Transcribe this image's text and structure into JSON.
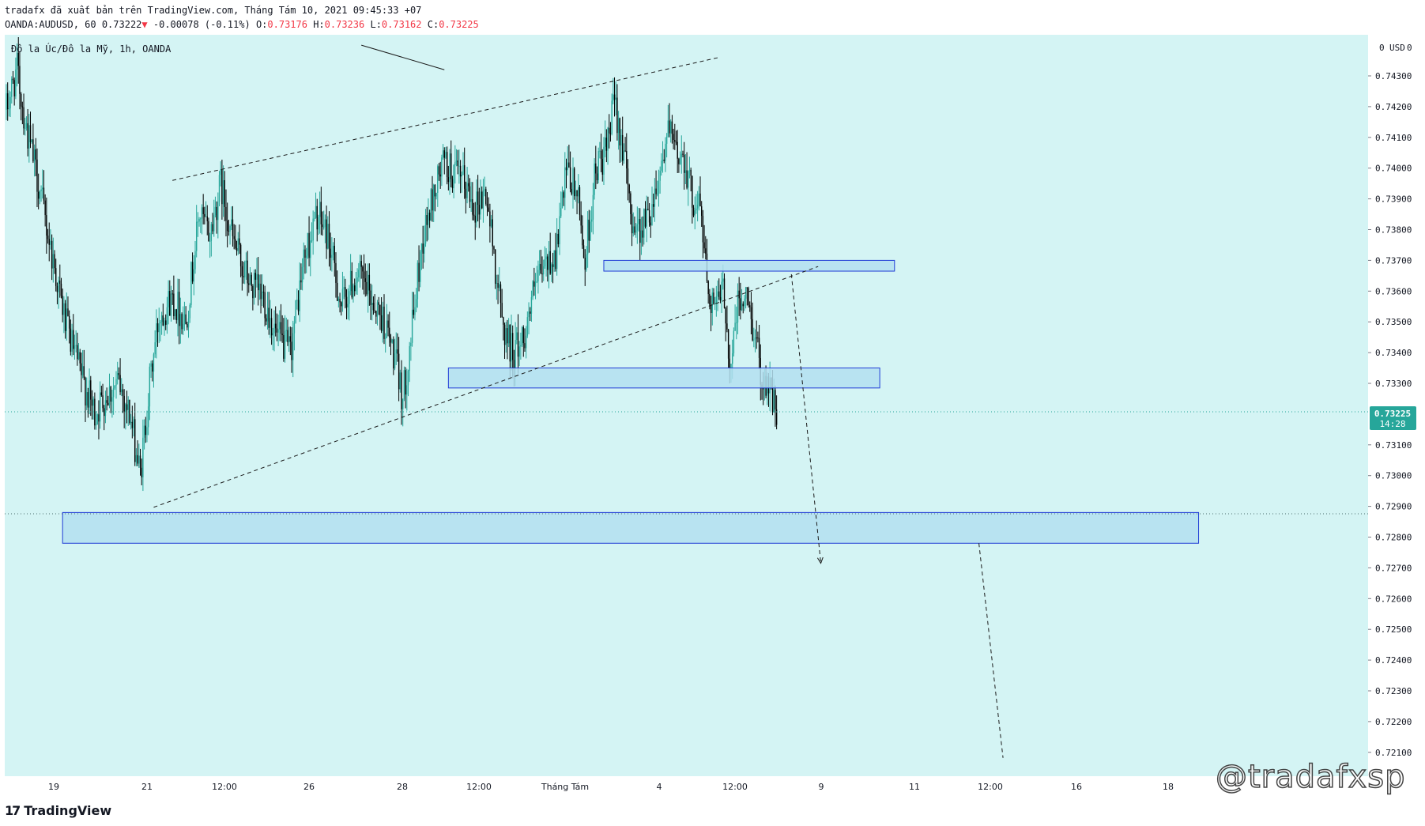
{
  "header": {
    "line1": "tradafx đã xuất bản trên TradingView.com, Tháng Tám 10, 2021 09:45:33 +07",
    "symbol": "OANDA:AUDUSD, 60",
    "last": "0.73222",
    "change": "-0.00078 (-0.11%)",
    "o_label": "O:",
    "o_value": "0.73176",
    "h_label": "H:",
    "h_value": "0.73236",
    "l_label": "L:",
    "l_value": "0.73162",
    "c_label": "C:",
    "c_value": "0.73225"
  },
  "legend_title": "Đô la Úc/Đô la Mỹ, 1h, OANDA",
  "currency_label": "USD",
  "price_badge": {
    "price": "0.73225",
    "countdown": "14:28",
    "color": "#26a69a"
  },
  "footer_logo": "TradingView",
  "watermark": "@tradafxsp",
  "colors": {
    "background": "#d4f4f4",
    "bull": "#26a69a",
    "bear": "#000000",
    "zone_fill": "#b3dff0",
    "zone_stroke": "#1f3bd6"
  },
  "chart_data": {
    "type": "candlestick",
    "symbol": "OANDA:AUDUSD",
    "timeframe": "1h",
    "y_axis": {
      "ticks": [
        "0.74300",
        "0.74200",
        "0.74100",
        "0.74000",
        "0.73900",
        "0.73800",
        "0.73700",
        "0.73600",
        "0.73500",
        "0.73400",
        "0.73300",
        "0.73100",
        "0.73000",
        "0.72900",
        "0.72800",
        "0.72700",
        "0.72600",
        "0.72500",
        "0.72400",
        "0.72300",
        "0.72200",
        "0.72100"
      ],
      "range": [
        0.7207,
        0.7443
      ]
    },
    "x_axis": {
      "ticks": [
        "19",
        "21",
        "12:00",
        "26",
        "28",
        "12:00",
        "Tháng Tám",
        "4",
        "12:00",
        "9",
        "11",
        "12:00",
        "16",
        "18"
      ]
    },
    "current_price": 0.73225,
    "anchors": [
      [
        0,
        0.7419
      ],
      [
        8,
        0.7432
      ],
      [
        14,
        0.7415
      ],
      [
        24,
        0.7395
      ],
      [
        34,
        0.7372
      ],
      [
        44,
        0.735
      ],
      [
        54,
        0.7335
      ],
      [
        66,
        0.732
      ],
      [
        74,
        0.7326
      ],
      [
        84,
        0.733
      ],
      [
        92,
        0.732
      ],
      [
        100,
        0.73
      ],
      [
        107,
        0.733
      ],
      [
        114,
        0.7352
      ],
      [
        124,
        0.7358
      ],
      [
        134,
        0.735
      ],
      [
        144,
        0.7385
      ],
      [
        152,
        0.7378
      ],
      [
        160,
        0.7395
      ],
      [
        170,
        0.7375
      ],
      [
        182,
        0.7362
      ],
      [
        192,
        0.7358
      ],
      [
        202,
        0.7345
      ],
      [
        212,
        0.734
      ],
      [
        222,
        0.737
      ],
      [
        232,
        0.7385
      ],
      [
        240,
        0.7378
      ],
      [
        250,
        0.7355
      ],
      [
        262,
        0.7366
      ],
      [
        272,
        0.7358
      ],
      [
        282,
        0.735
      ],
      [
        290,
        0.7338
      ],
      [
        296,
        0.7325
      ],
      [
        302,
        0.7345
      ],
      [
        310,
        0.7375
      ],
      [
        318,
        0.739
      ],
      [
        326,
        0.7402
      ],
      [
        334,
        0.7398
      ],
      [
        342,
        0.7395
      ],
      [
        350,
        0.7388
      ],
      [
        358,
        0.7392
      ],
      [
        364,
        0.7372
      ],
      [
        370,
        0.735
      ],
      [
        378,
        0.734
      ],
      [
        386,
        0.7345
      ],
      [
        394,
        0.736
      ],
      [
        402,
        0.7368
      ],
      [
        410,
        0.7372
      ],
      [
        418,
        0.7398
      ],
      [
        426,
        0.7392
      ],
      [
        432,
        0.737
      ],
      [
        440,
        0.74
      ],
      [
        448,
        0.7405
      ],
      [
        454,
        0.7422
      ],
      [
        460,
        0.7408
      ],
      [
        466,
        0.7385
      ],
      [
        472,
        0.738
      ],
      [
        480,
        0.7385
      ],
      [
        488,
        0.74
      ],
      [
        494,
        0.7412
      ],
      [
        500,
        0.7405
      ],
      [
        506,
        0.7404
      ],
      [
        512,
        0.739
      ],
      [
        518,
        0.7388
      ],
      [
        524,
        0.736
      ],
      [
        530,
        0.7355
      ],
      [
        536,
        0.736
      ],
      [
        540,
        0.7335
      ],
      [
        546,
        0.7355
      ],
      [
        552,
        0.7358
      ],
      [
        558,
        0.7348
      ],
      [
        564,
        0.7332
      ],
      [
        570,
        0.733
      ],
      [
        575,
        0.7318
      ]
    ],
    "zones": [
      {
        "from_index": 446,
        "to_index": 663,
        "low": 0.73665,
        "high": 0.737
      },
      {
        "from_index": 330,
        "to_index": 652,
        "low": 0.73285,
        "high": 0.7335
      },
      {
        "from_index": 42,
        "to_index": 890,
        "low": 0.7278,
        "high": 0.7288
      }
    ],
    "trendlines": [
      {
        "style": "dashed",
        "from": [
          124,
          0.7396
        ],
        "to": [
          532,
          0.7436
        ]
      },
      {
        "style": "dashed",
        "from": [
          110,
          0.72897
        ],
        "to": [
          606,
          0.7368
        ]
      },
      {
        "style": "solid",
        "from": [
          265,
          0.744
        ],
        "to": [
          327,
          0.7432
        ]
      },
      {
        "style": "dashed-arrow",
        "from": [
          586,
          0.73655
        ],
        "to": [
          608,
          0.72715
        ]
      },
      {
        "style": "dashed",
        "from": [
          726,
          0.7278
        ],
        "to": [
          744,
          0.72082
        ]
      }
    ]
  }
}
